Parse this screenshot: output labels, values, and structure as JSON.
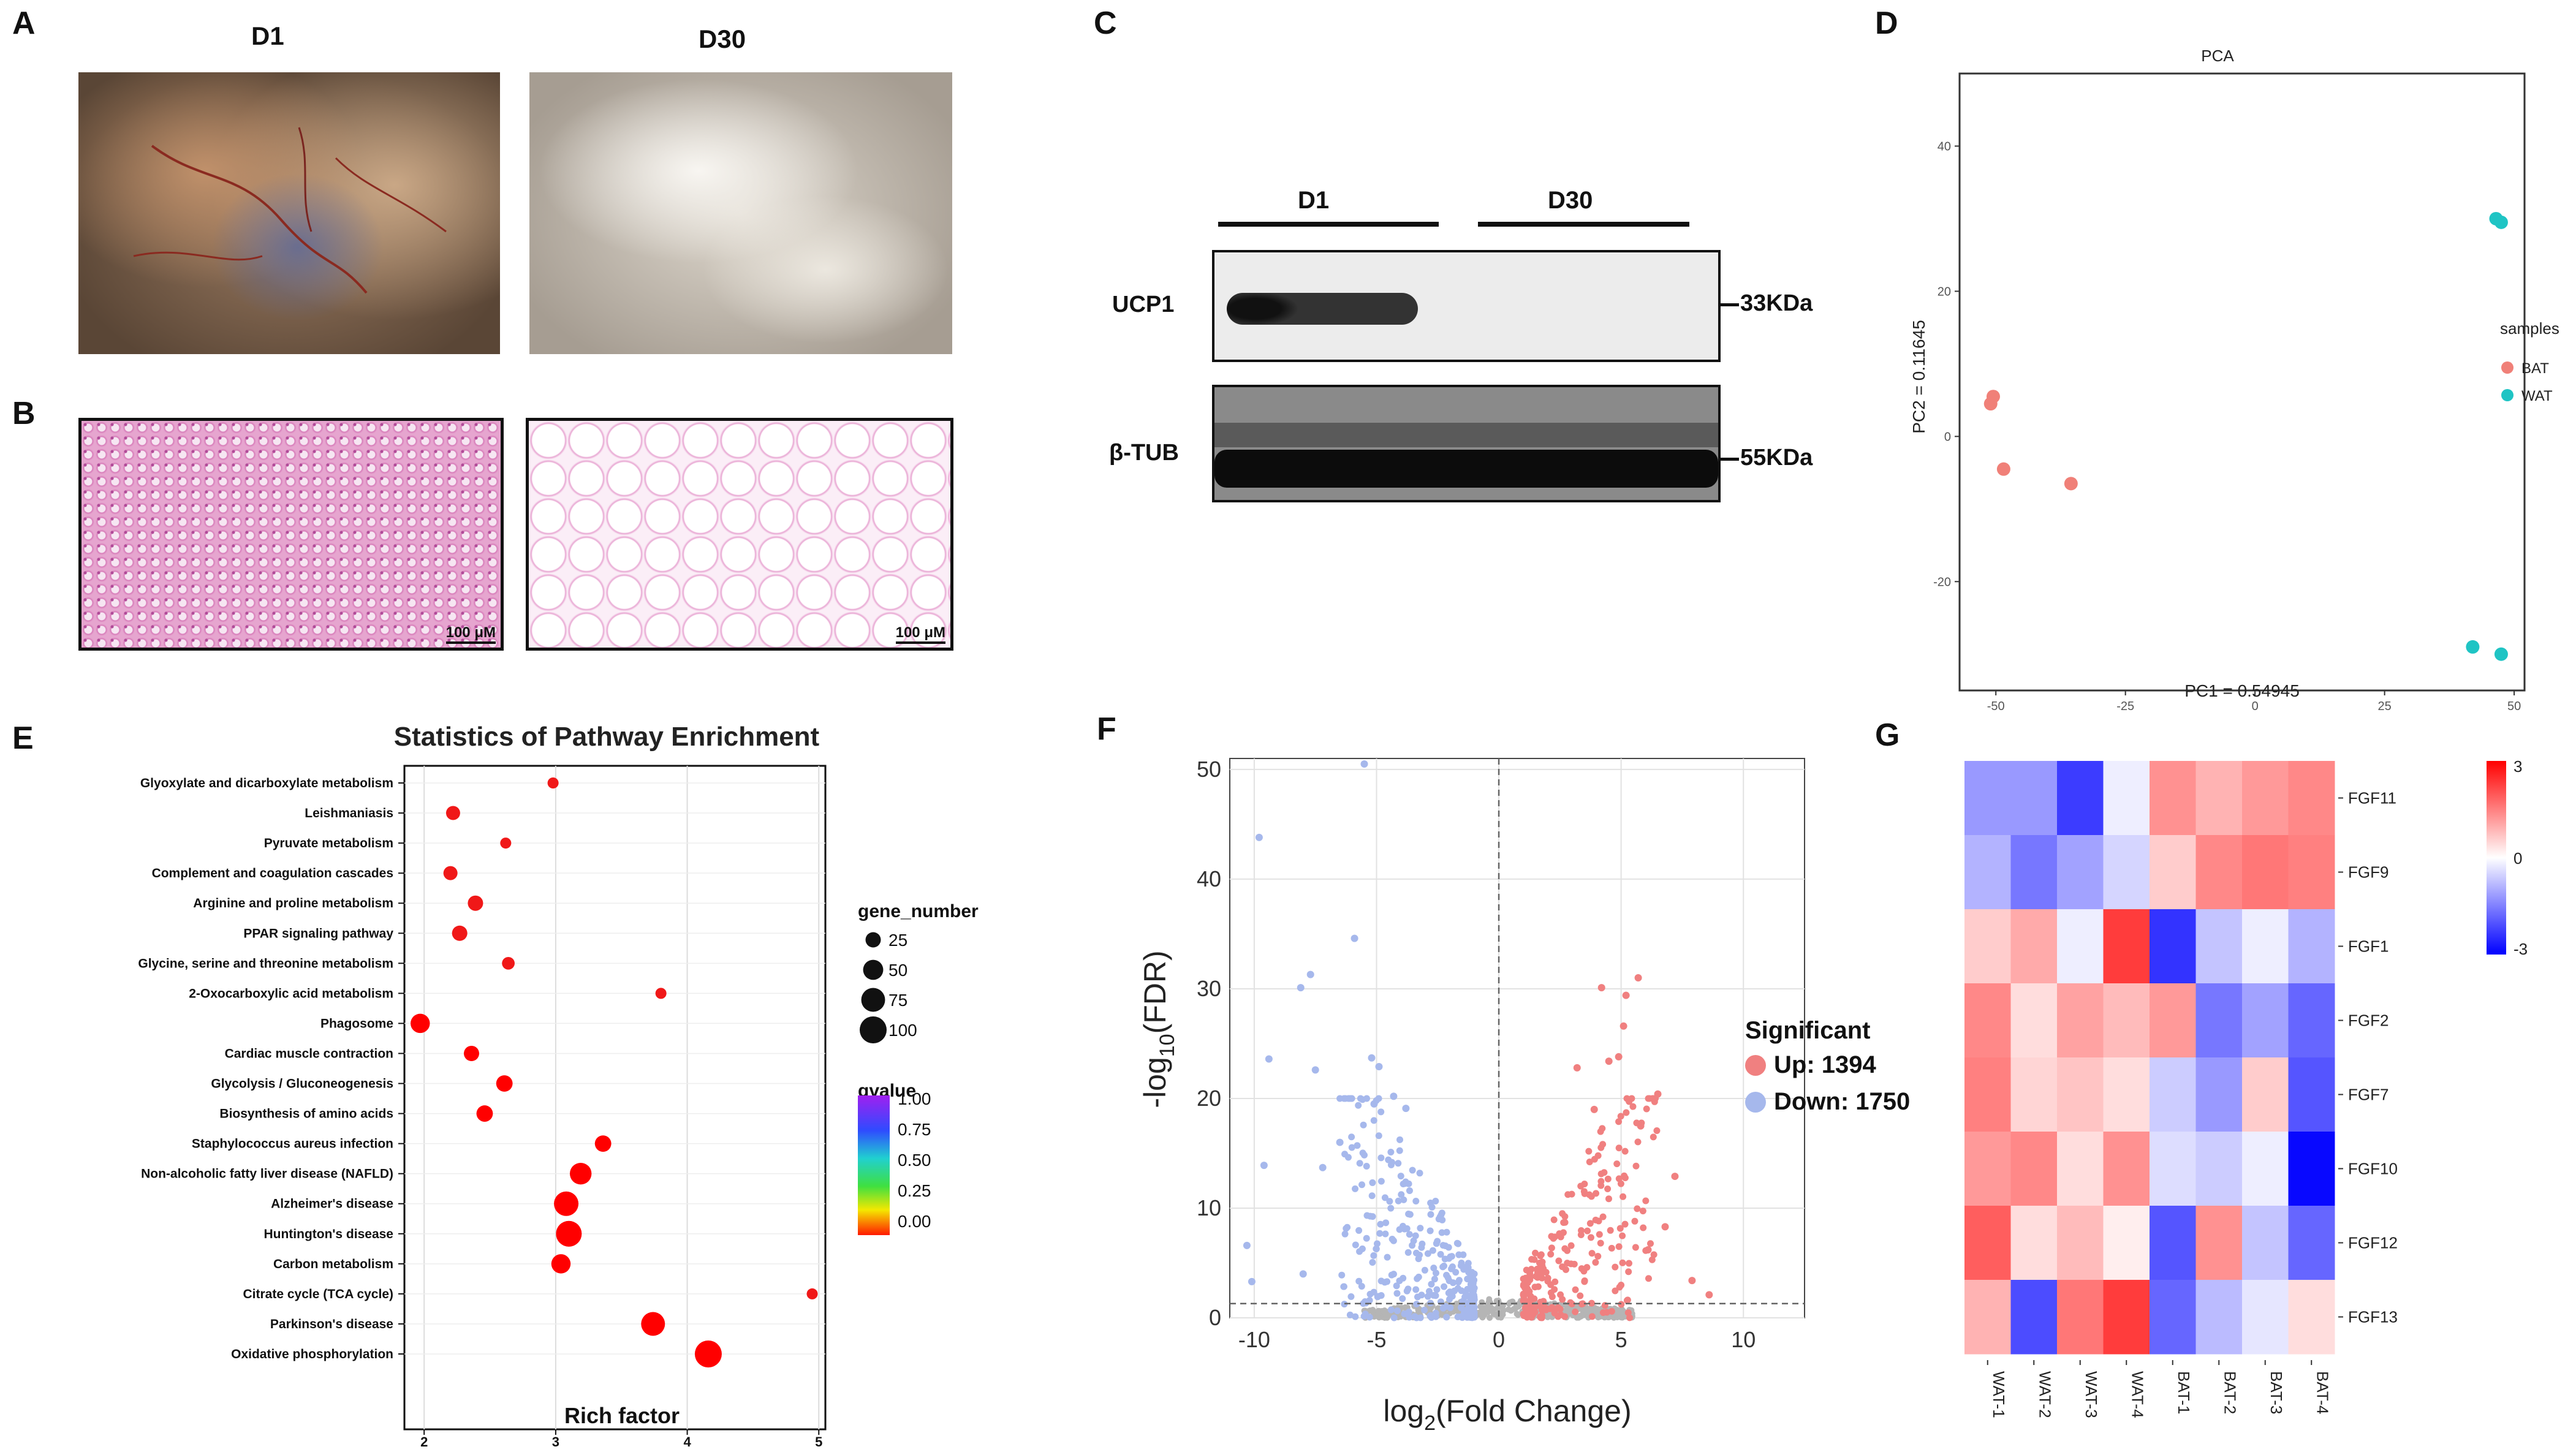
{
  "panels": {
    "A": {
      "letter": "A",
      "day1": "D1",
      "day30": "D30"
    },
    "B": {
      "letter": "B",
      "scale_left": "100 μM",
      "scale_right": "100 μM"
    },
    "C": {
      "letter": "C",
      "group1": "D1",
      "group2": "D30",
      "row1": "UCP1",
      "row2": "β-TUB",
      "mw1": "33KDa",
      "mw2": "55KDa"
    },
    "D": {
      "letter": "D"
    },
    "E": {
      "letter": "E"
    },
    "F": {
      "letter": "F"
    },
    "G": {
      "letter": "G"
    }
  },
  "colors": {
    "bat": "#F08078",
    "wat": "#1FC4C4",
    "up": "#F08080",
    "down": "#A6B8EC",
    "ns": "#B5B5B5"
  },
  "chart_data": [
    {
      "id": "pca",
      "type": "scatter",
      "title": "PCA",
      "xlabel": "PC1 = 0.54945",
      "ylabel": "PC2 = 0.11645",
      "xlim": [
        -57,
        52
      ],
      "ylim": [
        -35,
        50
      ],
      "xticks": [
        "-50",
        "-25",
        "0",
        "25",
        "50"
      ],
      "yticks": [
        "40",
        "20",
        "0",
        "-20"
      ],
      "legend_title": "samples",
      "legend_position": "right",
      "series": [
        {
          "name": "BAT",
          "points": [
            [
              -51,
              4.5
            ],
            [
              -50.5,
              5.5
            ],
            [
              -48.5,
              -4.5
            ],
            [
              -35.5,
              -6.5
            ]
          ]
        },
        {
          "name": "WAT",
          "points": [
            [
              46.5,
              30
            ],
            [
              47.5,
              29.5
            ],
            [
              42,
              -29
            ],
            [
              47.5,
              -30
            ]
          ]
        }
      ]
    },
    {
      "id": "kegg",
      "type": "scatter",
      "title": "Statistics of Pathway Enrichment",
      "xlabel": "Rich factor",
      "xlim": [
        1.85,
        5.05
      ],
      "xticks": [
        "2",
        "3",
        "4",
        "5"
      ],
      "categories": [
        "Glyoxylate and dicarboxylate metabolism",
        "Leishmaniasis",
        "Pyruvate metabolism",
        "Complement and coagulation cascades",
        "Arginine and proline metabolism",
        "PPAR signaling pathway",
        "Glycine, serine and threonine metabolism",
        "2-Oxocarboxylic acid metabolism",
        "Phagosome",
        "Cardiac muscle contraction",
        "Glycolysis / Gluconeogenesis",
        "Biosynthesis of amino acids",
        "Staphylococcus aureus infection",
        "Non-alcoholic fatty liver disease (NAFLD)",
        "Alzheimer's disease",
        "Huntington's disease",
        "Carbon metabolism",
        "Citrate cycle (TCA cycle)",
        "Parkinson's disease",
        "Oxidative phosphorylation"
      ],
      "rich_factor": [
        2.98,
        2.22,
        2.62,
        2.2,
        2.39,
        2.27,
        2.64,
        3.8,
        1.97,
        2.36,
        2.61,
        2.46,
        3.36,
        3.19,
        3.08,
        3.1,
        3.04,
        4.95,
        3.74,
        4.16
      ],
      "gene_number": [
        10,
        20,
        10,
        20,
        25,
        25,
        15,
        10,
        45,
        25,
        30,
        30,
        30,
        60,
        80,
        90,
        45,
        10,
        75,
        100
      ],
      "qvalue": [
        0.02,
        0.02,
        0.02,
        0.02,
        0.02,
        0.02,
        0.02,
        0.02,
        0.0,
        0.0,
        0.0,
        0.0,
        0.0,
        0.0,
        0.0,
        0.0,
        0.0,
        0.02,
        0.0,
        0.0
      ],
      "size_legend": {
        "title": "gene_number",
        "labels": [
          "25",
          "50",
          "75",
          "100"
        ],
        "values": [
          25,
          50,
          75,
          100
        ]
      },
      "color_legend": {
        "title": "qvalue",
        "labels": [
          "1.00",
          "0.75",
          "0.50",
          "0.25",
          "0.00"
        ],
        "values": [
          1.0,
          0.75,
          0.5,
          0.25,
          0.0
        ]
      }
    },
    {
      "id": "volcano",
      "type": "scatter",
      "xlabel_main": "log",
      "xlabel_sub": "2",
      "xlabel_rest": "(Fold Change)",
      "ylabel_main": "-log",
      "ylabel_sub": "10",
      "ylabel_rest": "(FDR)",
      "xlim": [
        -11,
        12.5
      ],
      "ylim": [
        0,
        51
      ],
      "xticks": [
        "-10",
        "-5",
        "0",
        "5",
        "10"
      ],
      "yticks": [
        "0",
        "10",
        "20",
        "30",
        "40",
        "50"
      ],
      "legend_title": "Significant",
      "legend_position": "right",
      "series": [
        {
          "name": "Up: 1394",
          "label": "Up",
          "count": 1394
        },
        {
          "name": "Down: 1750",
          "label": "Down",
          "count": 1750
        }
      ],
      "labeled_points": {
        "down": [
          [
            -5.5,
            50.5
          ],
          [
            -9.8,
            43.8
          ],
          [
            -5.9,
            34.6
          ],
          [
            -7.7,
            31.3
          ],
          [
            -8.1,
            30.1
          ],
          [
            -9.4,
            23.6
          ],
          [
            -7.5,
            22.6
          ],
          [
            -9.6,
            13.9
          ],
          [
            -10.3,
            6.6
          ],
          [
            -10.1,
            3.3
          ],
          [
            -7.2,
            13.7
          ],
          [
            -6.5,
            16.0
          ],
          [
            -5.2,
            23.7
          ],
          [
            -4.9,
            22.9
          ],
          [
            -4.3,
            20.2
          ],
          [
            -5.1,
            19.5
          ],
          [
            -3.8,
            19.1
          ],
          [
            -8.0,
            4.0
          ]
        ],
        "up": [
          [
            5.7,
            31.0
          ],
          [
            4.2,
            30.1
          ],
          [
            5.2,
            29.4
          ],
          [
            5.1,
            26.6
          ],
          [
            4.9,
            23.8
          ],
          [
            4.5,
            23.4
          ],
          [
            3.2,
            22.8
          ],
          [
            6.5,
            20.4
          ],
          [
            3.9,
            19.0
          ],
          [
            5.8,
            17.5
          ],
          [
            7.2,
            12.9
          ],
          [
            6.8,
            8.3
          ],
          [
            8.6,
            2.1
          ],
          [
            7.9,
            3.4
          ],
          [
            6.1,
            6.2
          ]
        ]
      }
    },
    {
      "id": "heatmap",
      "type": "heatmap",
      "rows": [
        "FGF11",
        "FGF9",
        "FGF1",
        "FGF2",
        "FGF7",
        "FGF10",
        "FGF12",
        "FGF13"
      ],
      "columns": [
        "WAT-1",
        "WAT-2",
        "WAT-3",
        "WAT-4",
        "BAT-1",
        "BAT-2",
        "BAT-3",
        "BAT-4"
      ],
      "values": [
        [
          -1.2,
          -1.2,
          -2.3,
          -0.2,
          1.3,
          0.9,
          1.2,
          1.4
        ],
        [
          -0.9,
          -1.6,
          -1.1,
          -0.5,
          0.6,
          1.4,
          1.6,
          1.5
        ],
        [
          0.6,
          1.0,
          -0.2,
          2.3,
          -2.4,
          -0.7,
          -0.2,
          -0.9
        ],
        [
          1.4,
          0.4,
          1.1,
          0.8,
          1.2,
          -1.6,
          -1.1,
          -1.8
        ],
        [
          1.5,
          0.5,
          0.7,
          0.4,
          -0.6,
          -1.2,
          0.6,
          -2.0
        ],
        [
          1.2,
          1.4,
          0.4,
          1.3,
          -0.4,
          -0.6,
          -0.2,
          -2.9
        ],
        [
          1.9,
          0.4,
          0.8,
          0.2,
          -2.0,
          1.3,
          -0.7,
          -1.8
        ],
        [
          0.9,
          -2.1,
          1.6,
          2.3,
          -1.8,
          -0.8,
          -0.3,
          0.4
        ]
      ],
      "scale_labels": [
        "3",
        "0",
        "-3"
      ],
      "vmin": -3,
      "vmax": 3
    }
  ]
}
